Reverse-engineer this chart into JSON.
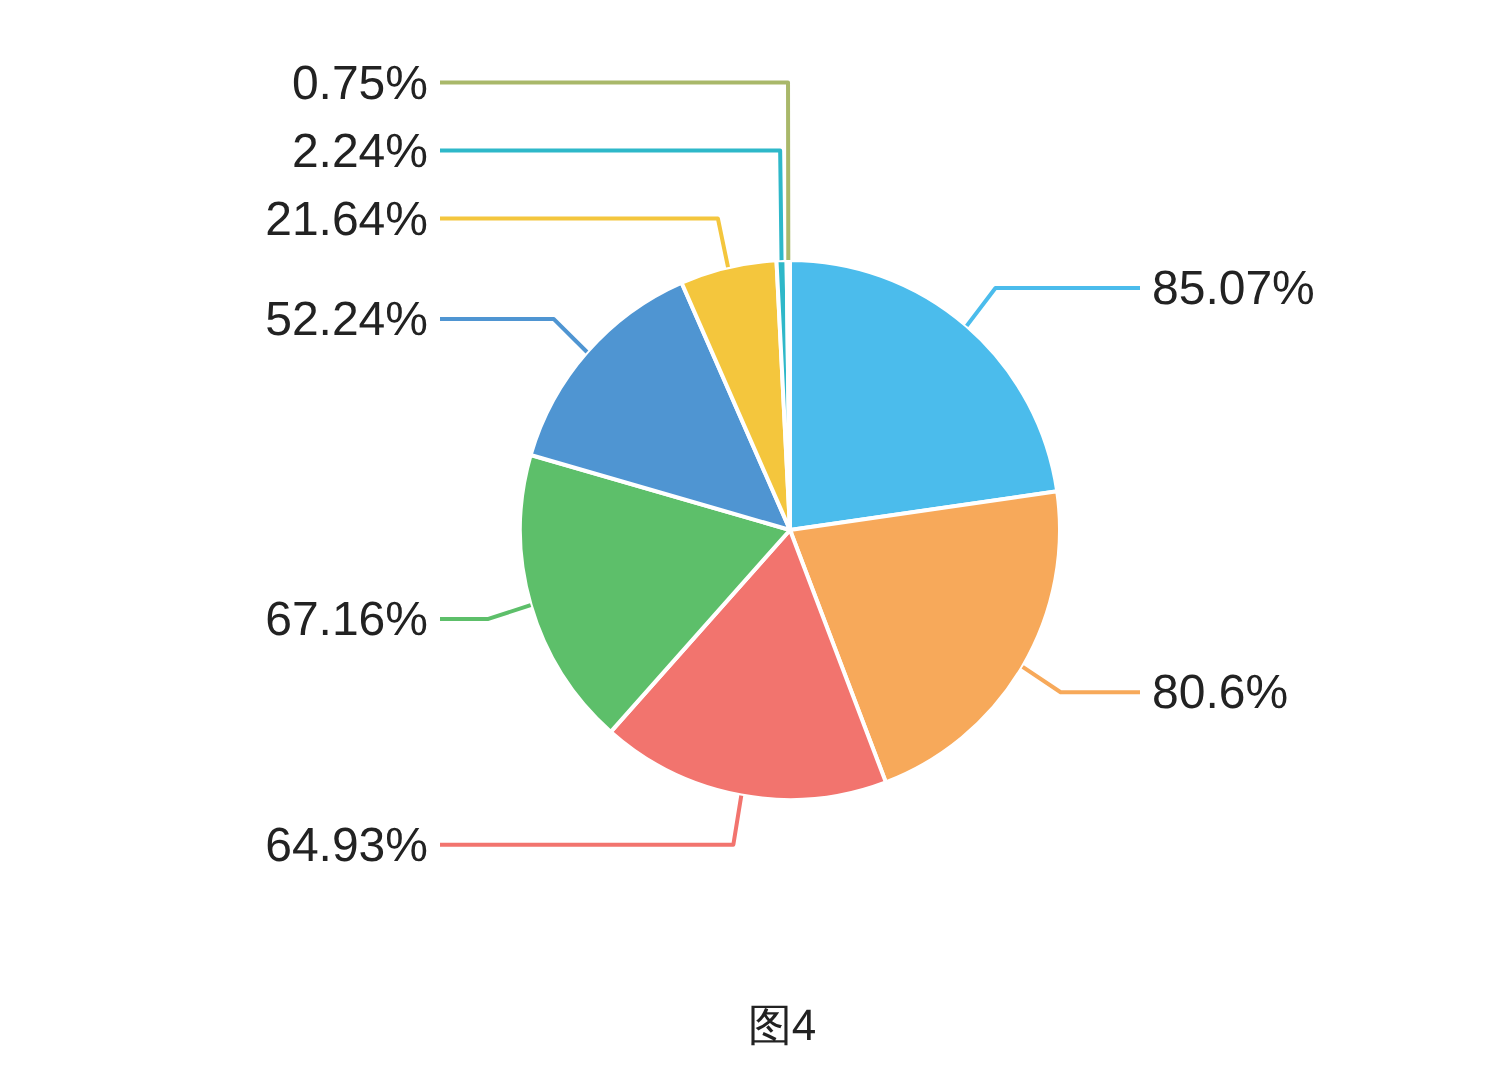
{
  "chart_data": {
    "type": "pie",
    "categories": [
      null,
      null,
      null,
      null,
      null,
      null,
      null,
      null
    ],
    "values": [
      85.07,
      80.6,
      64.93,
      67.16,
      52.24,
      21.64,
      2.24,
      0.75
    ],
    "value_labels": [
      "85.07%",
      "80.6%",
      "64.93%",
      "67.16%",
      "52.24%",
      "21.64%",
      "2.24%",
      "0.75%"
    ],
    "colors": [
      "#4bbcec",
      "#f7a95a",
      "#f2746e",
      "#5dbf6a",
      "#4f95d2",
      "#f4c63d",
      "#2eb8c9",
      "#a9b86a"
    ],
    "annotations": [
      "图4"
    ]
  }
}
